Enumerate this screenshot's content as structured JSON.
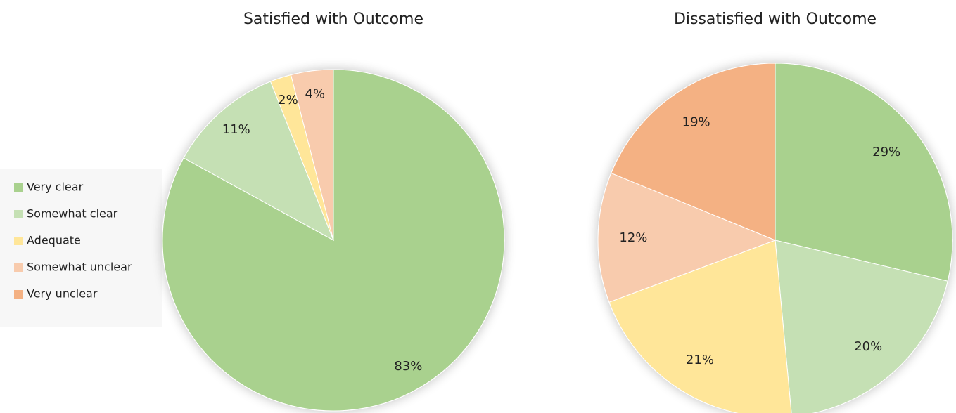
{
  "chart_data": [
    {
      "type": "pie",
      "title": "Satisfied with Outcome",
      "categories": [
        "Very clear",
        "Somewhat clear",
        "Adequate",
        "Somewhat unclear",
        "Very unclear"
      ],
      "values": [
        83,
        11,
        2,
        4,
        0
      ],
      "value_labels": [
        "83%",
        "11%",
        "2%",
        "4%",
        null
      ],
      "colors": [
        "#a9d18e",
        "#c5e0b4",
        "#ffe699",
        "#f8cbad",
        "#f4b183"
      ],
      "legend": "left"
    },
    {
      "type": "pie",
      "title": "Dissatisfied with Outcome",
      "categories": [
        "Very clear",
        "Somewhat clear",
        "Adequate",
        "Somewhat unclear",
        "Very unclear"
      ],
      "values": [
        29,
        20,
        21,
        12,
        19
      ],
      "value_labels": [
        "29%",
        "20%",
        "21%",
        "12%",
        "19%"
      ],
      "colors": [
        "#a9d18e",
        "#c5e0b4",
        "#ffe699",
        "#f8cbad",
        "#f4b183"
      ]
    }
  ]
}
